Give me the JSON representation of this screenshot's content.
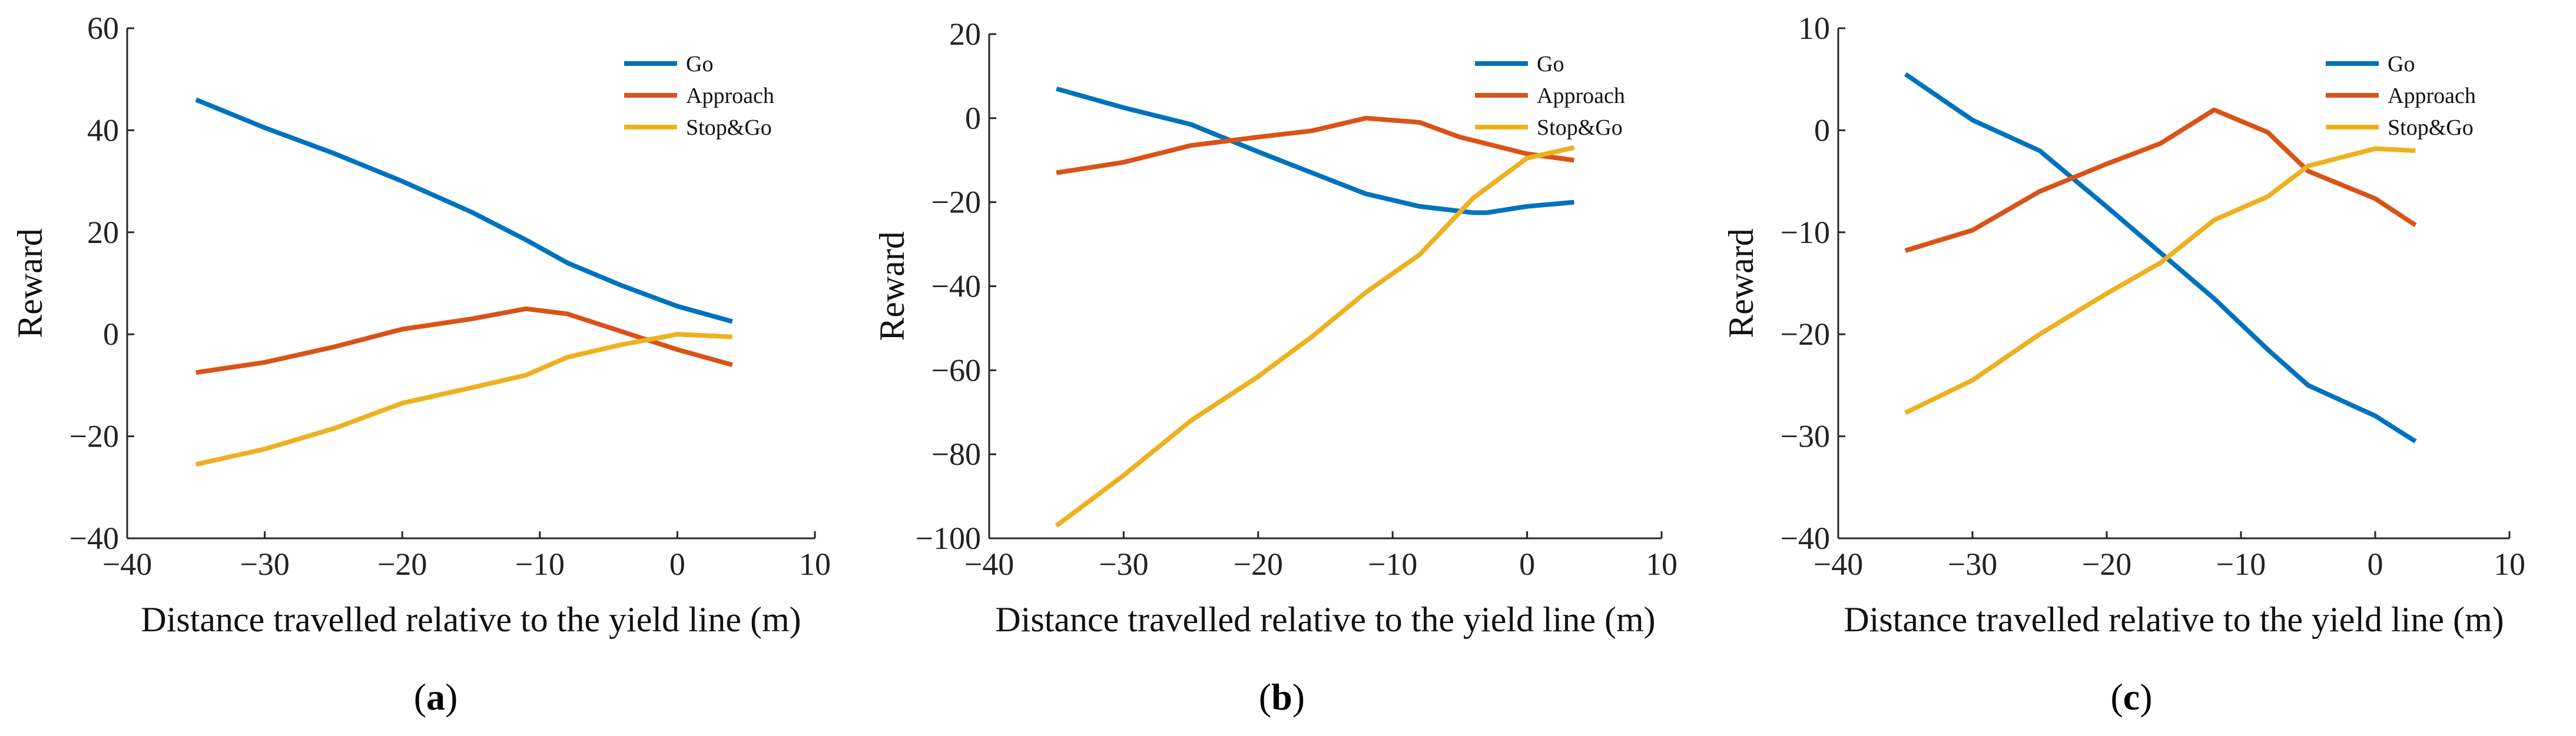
{
  "chart_data": [
    {
      "type": "line",
      "panel_label": "a",
      "title": "",
      "xlabel": "Distance travelled relative to the yield line (m)",
      "ylabel": "Reward",
      "xlim": [
        -40,
        10
      ],
      "ylim": [
        -40,
        60
      ],
      "xticks": [
        -40,
        -30,
        -20,
        -10,
        0,
        10
      ],
      "yticks": [
        -40,
        -20,
        0,
        20,
        40,
        60
      ],
      "legend_position": "top-right",
      "grid": false,
      "series": [
        {
          "name": "Go",
          "color": "#0072BD",
          "x": [
            -35,
            -30,
            -25,
            -20,
            -15,
            -11,
            -8,
            -4,
            0,
            4
          ],
          "y": [
            46,
            40.5,
            35.5,
            30,
            24,
            18.5,
            14,
            9.5,
            5.5,
            2.5
          ]
        },
        {
          "name": "Approach",
          "color": "#D95319",
          "x": [
            -35,
            -30,
            -25,
            -20,
            -15,
            -11,
            -8,
            -4,
            0,
            4
          ],
          "y": [
            -7.5,
            -5.5,
            -2.5,
            1,
            3,
            5,
            4,
            0.5,
            -3,
            -6
          ]
        },
        {
          "name": "Stop&Go",
          "color": "#EDB120",
          "x": [
            -35,
            -30,
            -25,
            -20,
            -15,
            -11,
            -8,
            -4,
            0,
            4
          ],
          "y": [
            -25.5,
            -22.5,
            -18.5,
            -13.5,
            -10.5,
            -8,
            -4.5,
            -2,
            0,
            -0.5
          ]
        }
      ]
    },
    {
      "type": "line",
      "panel_label": "b",
      "title": "",
      "xlabel": "Distance travelled relative to the yield line (m)",
      "ylabel": "Reward",
      "xlim": [
        -40,
        10
      ],
      "ylim": [
        -100,
        20
      ],
      "xticks": [
        -40,
        -30,
        -20,
        -10,
        0,
        10
      ],
      "yticks": [
        -100,
        -80,
        -60,
        -40,
        -20,
        0,
        20
      ],
      "legend_position": "top-right",
      "grid": false,
      "series": [
        {
          "name": "Go",
          "color": "#0072BD",
          "x": [
            -35,
            -30,
            -25,
            -20,
            -16,
            -12,
            -8,
            -4,
            -3,
            0,
            3.5
          ],
          "y": [
            7,
            2.5,
            -1.5,
            -8,
            -13,
            -18,
            -21,
            -22.5,
            -22.5,
            -21,
            -20
          ]
        },
        {
          "name": "Approach",
          "color": "#D95319",
          "x": [
            -35,
            -30,
            -25,
            -20,
            -16,
            -12,
            -8,
            -5,
            0,
            3.5
          ],
          "y": [
            -13,
            -10.5,
            -6.5,
            -4.5,
            -3,
            0,
            -1,
            -4.5,
            -8.5,
            -10
          ]
        },
        {
          "name": "Stop&Go",
          "color": "#EDB120",
          "x": [
            -35,
            -30,
            -25,
            -20,
            -16,
            -12,
            -8,
            -4,
            0,
            3.5
          ],
          "y": [
            -97,
            -85,
            -72,
            -61.5,
            -52,
            -41.5,
            -32.5,
            -19,
            -9.5,
            -7
          ]
        }
      ]
    },
    {
      "type": "line",
      "panel_label": "c",
      "title": "",
      "xlabel": "Distance travelled relative to the yield line (m)",
      "ylabel": "Reward",
      "xlim": [
        -40,
        10
      ],
      "ylim": [
        -40,
        10
      ],
      "xticks": [
        -40,
        -30,
        -20,
        -10,
        0,
        10
      ],
      "yticks": [
        -40,
        -30,
        -20,
        -10,
        0,
        10
      ],
      "legend_position": "top-right",
      "grid": false,
      "series": [
        {
          "name": "Go",
          "color": "#0072BD",
          "x": [
            -35,
            -30,
            -25,
            -20,
            -16,
            -12,
            -8,
            -5,
            0,
            3
          ],
          "y": [
            5.5,
            1,
            -2,
            -7.5,
            -12,
            -16.5,
            -21.5,
            -25,
            -28,
            -30.5
          ]
        },
        {
          "name": "Approach",
          "color": "#D95319",
          "x": [
            -35,
            -30,
            -25,
            -20,
            -16,
            -12,
            -8,
            -5,
            0,
            3
          ],
          "y": [
            -11.8,
            -9.8,
            -6,
            -3.3,
            -1.3,
            2,
            -0.2,
            -4,
            -6.7,
            -9.3
          ]
        },
        {
          "name": "Stop&Go",
          "color": "#EDB120",
          "x": [
            -35,
            -30,
            -25,
            -20,
            -16,
            -12,
            -8,
            -5,
            0,
            3
          ],
          "y": [
            -27.7,
            -24.5,
            -20,
            -16,
            -13,
            -8.8,
            -6.5,
            -3.5,
            -1.8,
            -2
          ]
        }
      ]
    }
  ]
}
